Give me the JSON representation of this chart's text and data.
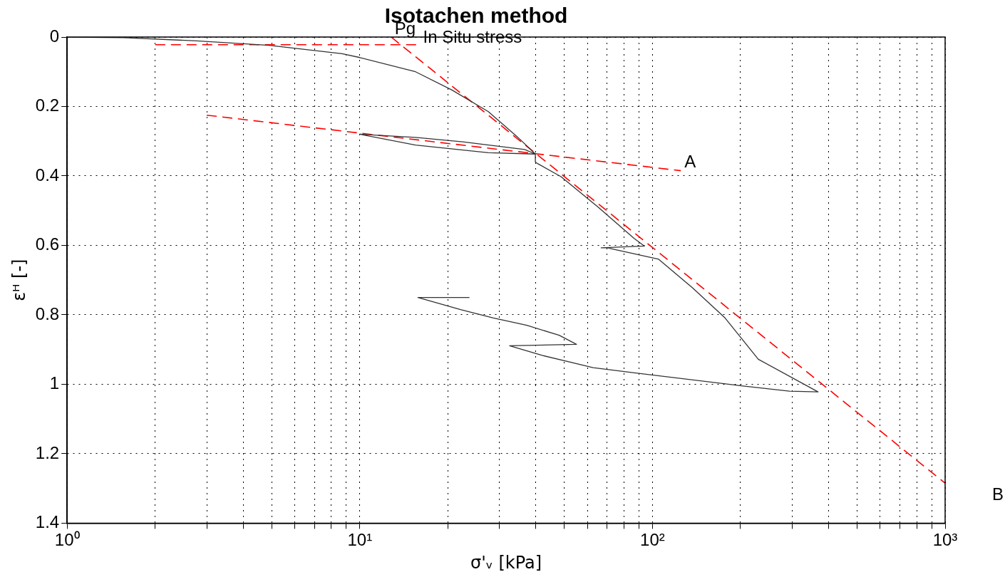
{
  "chart_data": {
    "type": "line",
    "title": "Isotachen method",
    "xlabel": "σ'ᵥ [kPa]",
    "ylabel": "εᴴ [-]",
    "log": "x",
    "xlim": [
      1,
      1000
    ],
    "ylim": [
      1.4,
      0
    ],
    "xticks": [
      {
        "value": 1,
        "label": "10⁰"
      },
      {
        "value": 2,
        "label": null
      },
      {
        "value": 3,
        "label": null
      },
      {
        "value": 4,
        "label": null
      },
      {
        "value": 5,
        "label": null
      },
      {
        "value": 6,
        "label": null
      },
      {
        "value": 7,
        "label": null
      },
      {
        "value": 8,
        "label": null
      },
      {
        "value": 9,
        "label": null
      },
      {
        "value": 10,
        "label": "10¹"
      },
      {
        "value": 20,
        "label": null
      },
      {
        "value": 30,
        "label": null
      },
      {
        "value": 40,
        "label": null
      },
      {
        "value": 50,
        "label": null
      },
      {
        "value": 60,
        "label": null
      },
      {
        "value": 70,
        "label": null
      },
      {
        "value": 80,
        "label": null
      },
      {
        "value": 90,
        "label": null
      },
      {
        "value": 100,
        "label": "10²"
      },
      {
        "value": 200,
        "label": null
      },
      {
        "value": 300,
        "label": null
      },
      {
        "value": 400,
        "label": null
      },
      {
        "value": 500,
        "label": null
      },
      {
        "value": 600,
        "label": null
      },
      {
        "value": 700,
        "label": null
      },
      {
        "value": 800,
        "label": null
      },
      {
        "value": 900,
        "label": null
      },
      {
        "value": 1000,
        "label": "10³"
      }
    ],
    "yticks": [
      0,
      0.2,
      0.4,
      0.6,
      0.8,
      1,
      1.2,
      1.4
    ],
    "grid": true,
    "marker": "none",
    "series": [
      {
        "color": "#333333",
        "line_style": "solid",
        "x": [
          1,
          1.56,
          2.77,
          4.9,
          8.7,
          10,
          15.5,
          20.6,
          27.5,
          34.5,
          39.8,
          27.5,
          15.5,
          10,
          15.5,
          22.5,
          36.6,
          39.8,
          39.8,
          40.6,
          48.7,
          65,
          86.6,
          93.9,
          66.8,
          70,
          105,
          137,
          177,
          230,
          368,
          294,
          199,
          86.7,
          62.7,
          42,
          32.5,
          55,
          48,
          37.2,
          28.6,
          22.1,
          15.8,
          23.7
        ],
        "values": [
          0,
          0.002,
          0.011,
          0.024,
          0.048,
          0.059,
          0.1,
          0.152,
          0.215,
          0.287,
          0.337,
          0.333,
          0.311,
          0.28,
          0.289,
          0.302,
          0.324,
          0.337,
          0.36,
          0.365,
          0.402,
          0.489,
          0.58,
          0.602,
          0.607,
          0.607,
          0.64,
          0.722,
          0.809,
          0.928,
          1.022,
          1.02,
          1.004,
          0.967,
          0.952,
          0.917,
          0.889,
          0.885,
          0.859,
          0.83,
          0.809,
          0.785,
          0.75,
          0.75
        ]
      },
      {
        "color": "#ff0000",
        "line_style": "dashed",
        "x": [
          2,
          15.6
        ],
        "values": [
          0.022,
          0.022
        ]
      },
      {
        "color": "#ff0000",
        "line_style": "dashed",
        "x": [
          12.8,
          1000
        ],
        "values": [
          0,
          1.285
        ]
      },
      {
        "color": "#ff0000",
        "line_style": "dashed",
        "x": [
          3,
          125
        ],
        "values": [
          0.225,
          0.385
        ]
      }
    ],
    "annotations": [
      {
        "text": "Pg",
        "x": 12.8,
        "y": 0
      },
      {
        "text": "In Situ stress",
        "x": 16,
        "y": 0.025
      },
      {
        "text": "A",
        "x": 125,
        "y": 0.385
      },
      "B"
    ]
  }
}
